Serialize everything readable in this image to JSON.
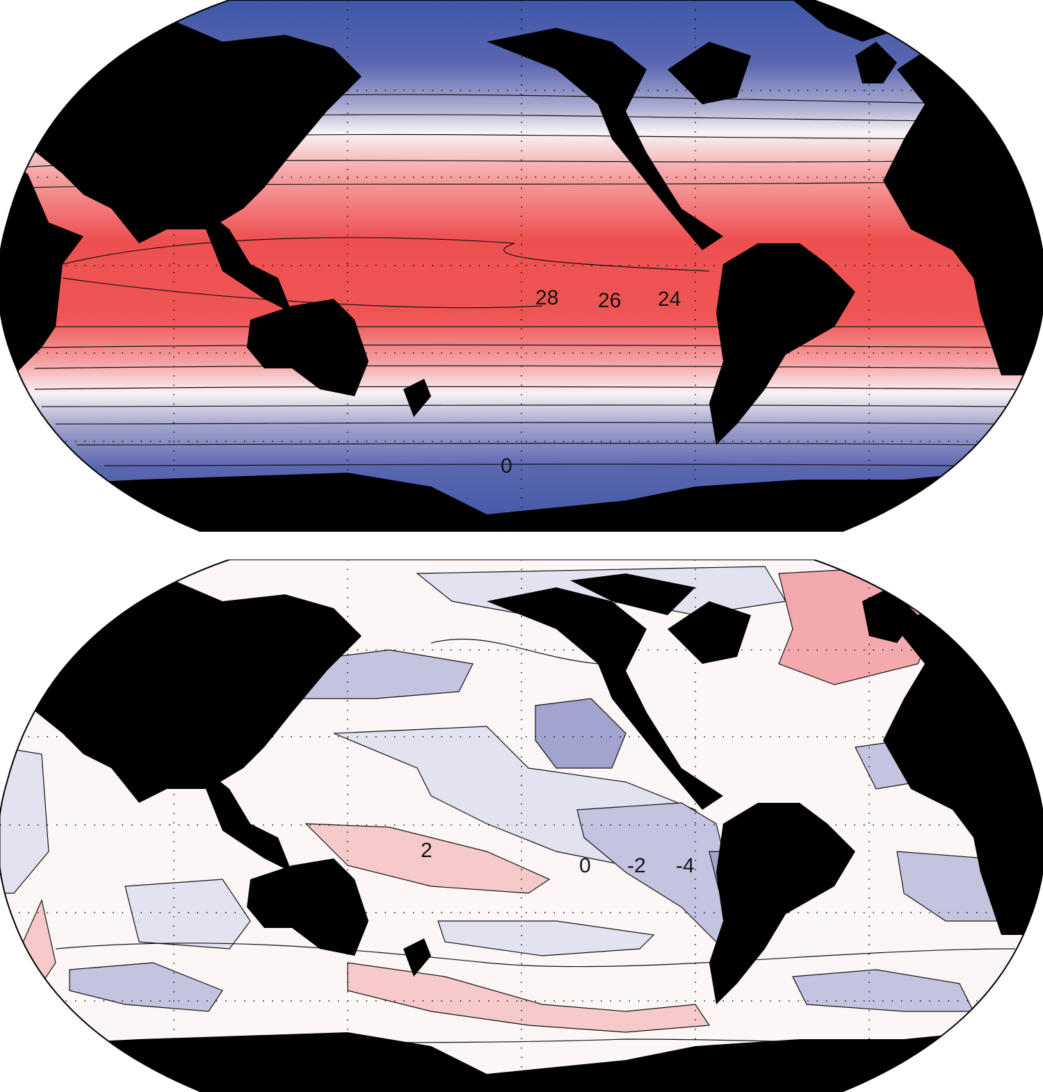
{
  "maps": [
    {
      "panel": "top",
      "projection": "Robinson",
      "field": "sea surface temperature",
      "colors": {
        "warm": "#ee5050",
        "warm_light": "#f7b3b3",
        "neutral": "#f8f4f6",
        "cool_light": "#b9bbdd",
        "cool": "#3f57a8",
        "land": "#000000"
      },
      "contour_labels": [
        "28",
        "26",
        "24",
        "0"
      ]
    },
    {
      "panel": "bottom",
      "projection": "Robinson",
      "field": "sea surface temperature difference",
      "colors": {
        "warm": "#f3a3a7",
        "warm_light": "#f9dada",
        "neutral": "#fcf6f6",
        "cool_light": "#e2e2f1",
        "cool": "#9f9fcf",
        "land": "#000000"
      },
      "contour_labels": [
        "2",
        "0",
        "-2",
        "-4"
      ]
    }
  ]
}
